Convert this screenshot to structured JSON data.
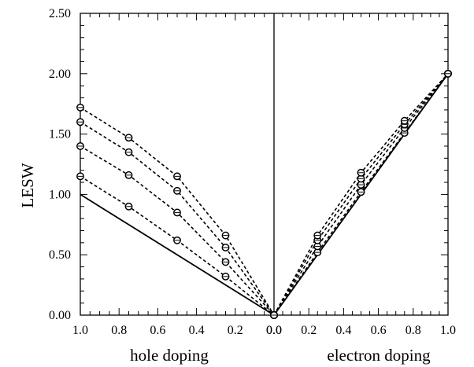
{
  "chart_data": {
    "type": "line",
    "title": "",
    "ylabel": "LESW",
    "xlabel_left": "hole doping",
    "xlabel_right": "electron doping",
    "ylim": [
      0,
      2.5
    ],
    "yticks": [
      "0.00",
      "0.50",
      "1.00",
      "1.50",
      "2.00",
      "2.50"
    ],
    "hole_xticks": [
      "1.0",
      "0.8",
      "0.6",
      "0.4",
      "0.2",
      "0.0"
    ],
    "electron_xticks": [
      "0.0",
      "0.2",
      "0.4",
      "0.6",
      "0.8",
      "1.0"
    ],
    "grid": false,
    "legend": "none",
    "hole_series": [
      {
        "style": "solid",
        "x": [
          1.0,
          0.0
        ],
        "y": [
          1.0,
          0.0
        ]
      },
      {
        "style": "dashed",
        "x": [
          1.0,
          0.75,
          0.5,
          0.25,
          0.0
        ],
        "y": [
          1.15,
          0.9,
          0.62,
          0.32,
          0.0
        ]
      },
      {
        "style": "dashed",
        "x": [
          1.0,
          0.75,
          0.5,
          0.25,
          0.0
        ],
        "y": [
          1.4,
          1.16,
          0.85,
          0.44,
          0.0
        ]
      },
      {
        "style": "dashed",
        "x": [
          1.0,
          0.75,
          0.5,
          0.25,
          0.0
        ],
        "y": [
          1.6,
          1.35,
          1.03,
          0.56,
          0.0
        ]
      },
      {
        "style": "dashed",
        "x": [
          1.0,
          0.75,
          0.5,
          0.25,
          0.0
        ],
        "y": [
          1.72,
          1.47,
          1.15,
          0.66,
          0.0
        ]
      }
    ],
    "electron_series": [
      {
        "style": "solid",
        "x": [
          0.0,
          1.0
        ],
        "y": [
          0.0,
          2.0
        ]
      },
      {
        "style": "dashed",
        "x": [
          0.0,
          0.25,
          0.5,
          0.75,
          1.0
        ],
        "y": [
          0.0,
          0.52,
          1.02,
          1.51,
          2.0
        ]
      },
      {
        "style": "dashed",
        "x": [
          0.0,
          0.25,
          0.5,
          0.75,
          1.0
        ],
        "y": [
          0.0,
          0.57,
          1.08,
          1.55,
          2.0
        ]
      },
      {
        "style": "dashed",
        "x": [
          0.0,
          0.25,
          0.5,
          0.75,
          1.0
        ],
        "y": [
          0.0,
          0.62,
          1.13,
          1.58,
          2.0
        ]
      },
      {
        "style": "dashed",
        "x": [
          0.0,
          0.25,
          0.5,
          0.75,
          1.0
        ],
        "y": [
          0.0,
          0.66,
          1.18,
          1.61,
          2.0
        ]
      }
    ]
  }
}
